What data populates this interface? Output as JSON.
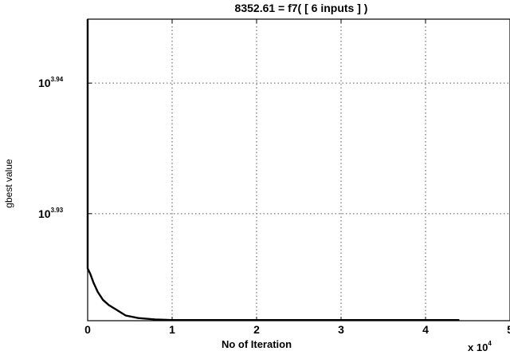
{
  "chart_data": {
    "type": "line",
    "title": "8352.61 = f7( [ 6 inputs ] )",
    "xlabel": "No of Iteration",
    "ylabel": "gbest value",
    "x_multiplier_label": "x 10",
    "x_multiplier_exponent": "4",
    "x_scale_factor": 10000,
    "x_tick_labels": [
      "0",
      "1",
      "2",
      "3",
      "4",
      "5"
    ],
    "x_ticks": [
      0,
      10000,
      20000,
      30000,
      40000,
      50000
    ],
    "y_scale": "log",
    "y_tick_labels": [
      {
        "base": "10",
        "exponent": "3.94"
      },
      {
        "base": "10",
        "exponent": "3.93"
      }
    ],
    "y_ticks_log10": [
      3.94,
      3.93
    ],
    "xlim": [
      0,
      50000
    ],
    "ylim_log10": [
      3.9218,
      3.9449
    ],
    "grid": true,
    "series": [
      {
        "values": [
          {
            "x": 0,
            "y_log10": 3.9449
          },
          {
            "x": 0,
            "y_log10": 3.9258
          },
          {
            "x": 300,
            "y_log10": 3.9254
          },
          {
            "x": 700,
            "y_log10": 3.9247
          },
          {
            "x": 1200,
            "y_log10": 3.924
          },
          {
            "x": 1800,
            "y_log10": 3.9234
          },
          {
            "x": 2500,
            "y_log10": 3.923
          },
          {
            "x": 3500,
            "y_log10": 3.9226
          },
          {
            "x": 4500,
            "y_log10": 3.9222
          },
          {
            "x": 6000,
            "y_log10": 3.922
          },
          {
            "x": 8000,
            "y_log10": 3.9219
          },
          {
            "x": 10000,
            "y_log10": 3.92185
          },
          {
            "x": 44000,
            "y_log10": 3.92185
          }
        ]
      }
    ]
  }
}
